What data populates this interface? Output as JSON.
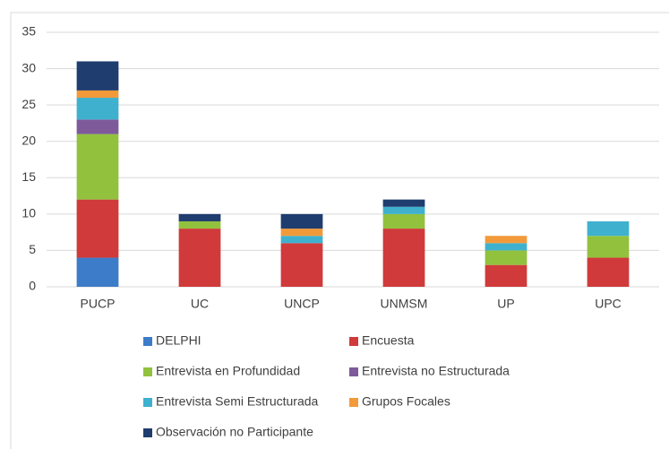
{
  "chart_data": {
    "type": "stacked_bar",
    "categories": [
      "PUCP",
      "UC",
      "UNCP",
      "UNMSM",
      "UP",
      "UPC"
    ],
    "series": [
      {
        "name": "DELPHI",
        "color": "#3d7cc9",
        "values": [
          4,
          0,
          0,
          0,
          0,
          0
        ]
      },
      {
        "name": "Encuesta",
        "color": "#d03a3a",
        "values": [
          8,
          8,
          6,
          8,
          3,
          4
        ]
      },
      {
        "name": "Entrevista en Profundidad",
        "color": "#92c13e",
        "values": [
          9,
          1,
          0,
          2,
          2,
          3
        ]
      },
      {
        "name": "Entrevista no Estructurada",
        "color": "#7e5a9b",
        "values": [
          2,
          0,
          0,
          0,
          0,
          0
        ]
      },
      {
        "name": "Entrevista Semi Estructurada",
        "color": "#3fb1cf",
        "values": [
          3,
          0,
          1,
          1,
          1,
          2
        ]
      },
      {
        "name": "Grupos Focales",
        "color": "#f29a3a",
        "values": [
          1,
          0,
          1,
          0,
          1,
          0
        ]
      },
      {
        "name": "Observación no Participante",
        "color": "#1f3d6e",
        "values": [
          4,
          1,
          2,
          1,
          0,
          0
        ]
      }
    ],
    "ylim": [
      0,
      35
    ],
    "yticks": [
      0,
      5,
      10,
      15,
      20,
      25,
      30,
      35
    ],
    "grid": true,
    "legend": "bottom"
  }
}
